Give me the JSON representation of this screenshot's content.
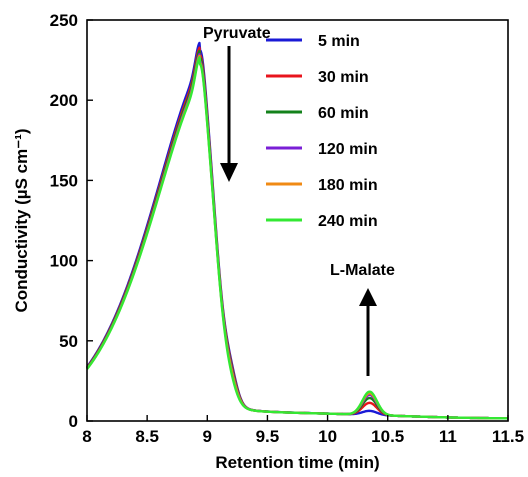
{
  "chart_data": {
    "type": "line",
    "xlabel": "Retention time (min)",
    "ylabel": "Conductivity (µS cm⁻¹)",
    "xlim": [
      8,
      11.5
    ],
    "ylim": [
      0,
      250
    ],
    "xticks": [
      8,
      8.5,
      9,
      9.5,
      10,
      10.5,
      11,
      11.5
    ],
    "xtick_labels": [
      "8",
      "8.5",
      "9",
      "9.5",
      "10",
      "10.5",
      "11",
      "11.5"
    ],
    "yticks": [
      0,
      50,
      100,
      150,
      200,
      250
    ],
    "ytick_labels": [
      "0",
      "50",
      "100",
      "150",
      "200",
      "250"
    ],
    "grid": false,
    "legend_position": "top-right",
    "annotations": [
      {
        "text": "Pyruvate",
        "arrow": "down"
      },
      {
        "text": "L-Malate",
        "arrow": "up"
      }
    ],
    "peaks": {
      "pyruvate_retention_min": 8.94,
      "l_malate_retention_min": 10.35
    },
    "series": [
      {
        "name": "5 min",
        "color": "#1a1ad6",
        "pyruvate_peak": 236,
        "shoulder": 10,
        "malate_peak": 5
      },
      {
        "name": "30 min",
        "color": "#e8141c",
        "pyruvate_peak": 233,
        "shoulder": 9,
        "malate_peak": 10
      },
      {
        "name": "60 min",
        "color": "#13821b",
        "pyruvate_peak": 231,
        "shoulder": 8,
        "malate_peak": 13
      },
      {
        "name": "120 min",
        "color": "#7a1fd6",
        "pyruvate_peak": 229,
        "shoulder": 7,
        "malate_peak": 15
      },
      {
        "name": "180 min",
        "color": "#f08a14",
        "pyruvate_peak": 228,
        "shoulder": 6,
        "malate_peak": 16
      },
      {
        "name": "240 min",
        "color": "#33e833",
        "pyruvate_peak": 227,
        "shoulder": 4,
        "malate_peak": 17
      }
    ]
  }
}
